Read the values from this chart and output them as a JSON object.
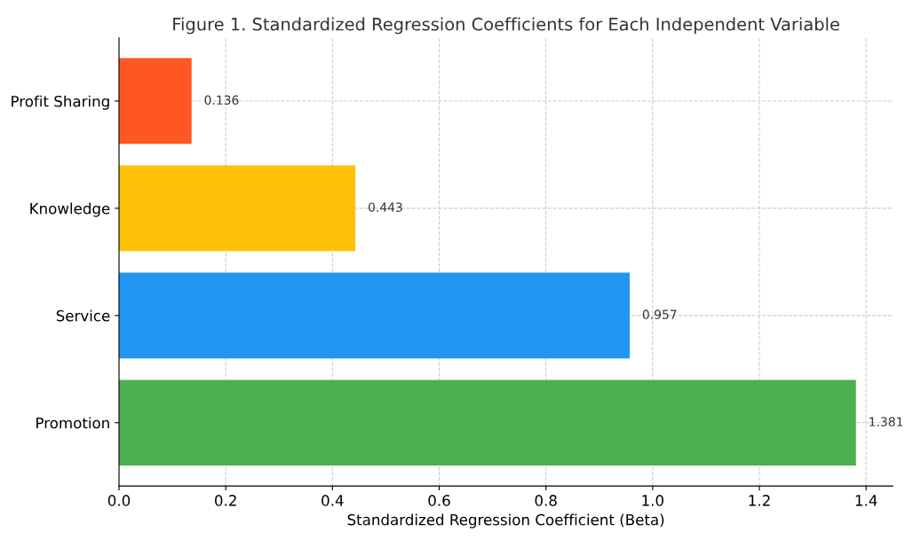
{
  "chart_data": {
    "type": "bar",
    "orientation": "horizontal",
    "title": "Figure 1. Standardized Regression Coefficients for Each Independent Variable",
    "xlabel": "Standardized Regression Coefficient (Beta)",
    "categories": [
      "Profit Sharing",
      "Knowledge",
      "Service",
      "Promotion"
    ],
    "values": [
      0.136,
      0.443,
      0.957,
      1.381
    ],
    "colors": [
      "#ff5722",
      "#ffc107",
      "#2196f3",
      "#4caf50"
    ],
    "xlim": [
      0,
      1.45
    ],
    "xticks": [
      {
        "value": 0,
        "label": "0.0"
      },
      0.2,
      0.4,
      0.6,
      0.8,
      {
        "value": 1,
        "label": "1.0"
      },
      1.2,
      1.4
    ],
    "grid": true,
    "line_style": "dashed",
    "data_labels": true
  }
}
